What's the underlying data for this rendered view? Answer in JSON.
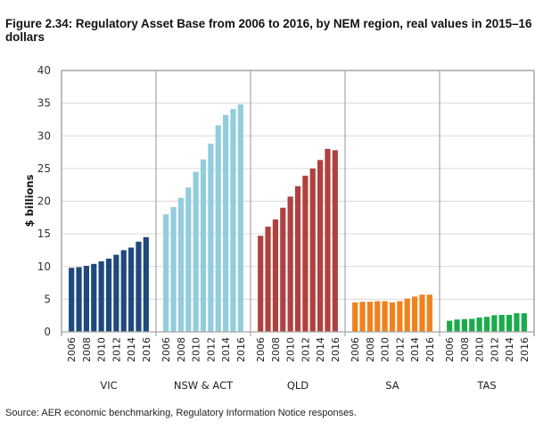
{
  "figure": {
    "title": "Figure 2.34: Regulatory Asset Base from 2006 to 2016, by NEM region, real values in 2015–16 dollars",
    "source": "Source: AER economic benchmarking, Regulatory Information Notice responses."
  },
  "chart_data": {
    "type": "bar",
    "title": "Figure 2.34: Regulatory Asset Base from 2006 to 2016, by NEM region, real values in 2015–16 dollars",
    "xlabel": "",
    "ylabel": "$ billions",
    "ylim": [
      0,
      40
    ],
    "yticks": [
      "0",
      "5",
      "10",
      "15",
      "20",
      "25",
      "30",
      "35",
      "40"
    ],
    "grid": true,
    "legend": "none",
    "years": [
      2006,
      2007,
      2008,
      2009,
      2010,
      2011,
      2012,
      2013,
      2014,
      2015,
      2016
    ],
    "xtick_labels": [
      "2006",
      "2008",
      "2010",
      "2012",
      "2014",
      "2016"
    ],
    "groups": [
      {
        "name": "VIC",
        "color": "#1f497d",
        "values": [
          9.8,
          9.9,
          10.1,
          10.4,
          10.8,
          11.2,
          11.8,
          12.5,
          12.9,
          13.8,
          14.5
        ]
      },
      {
        "name": "NSW & ACT",
        "color": "#92cddc",
        "values": [
          18.0,
          19.1,
          20.5,
          22.1,
          24.5,
          26.4,
          28.8,
          31.6,
          33.2,
          34.1,
          34.8
        ]
      },
      {
        "name": "QLD",
        "color": "#b0413e",
        "values": [
          14.7,
          16.1,
          17.2,
          19.0,
          20.7,
          22.3,
          23.9,
          25.0,
          26.3,
          28.0,
          27.8
        ]
      },
      {
        "name": "SA",
        "color": "#f0821e",
        "values": [
          4.5,
          4.6,
          4.6,
          4.7,
          4.7,
          4.5,
          4.7,
          5.1,
          5.4,
          5.7,
          5.7
        ]
      },
      {
        "name": "TAS",
        "color": "#1aab4b",
        "values": [
          1.7,
          1.9,
          1.95,
          2.0,
          2.2,
          2.3,
          2.55,
          2.6,
          2.6,
          2.85,
          2.85
        ]
      }
    ]
  }
}
